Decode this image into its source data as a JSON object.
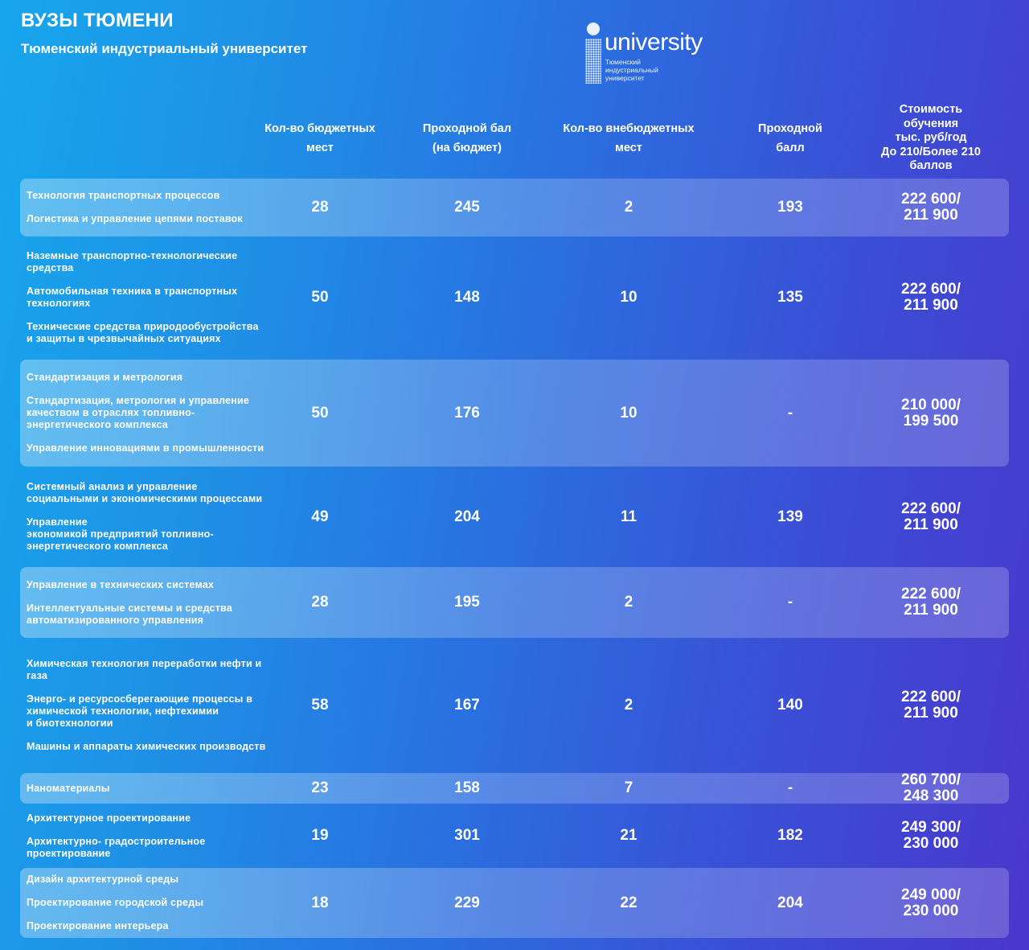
{
  "title": "ВУЗЫ ТЮМЕНИ",
  "subtitle": "Тюменский индустриальный университет",
  "logo": {
    "word": "university",
    "small": [
      "Тюменский",
      "индустриальный",
      "университет"
    ]
  },
  "headers": [
    "Кол-во бюджетных\nмест",
    "Проходной бал\n(на бюджет)",
    "Кол-во внебюджетных\nмест",
    "Проходной\nбалл",
    "Стоимость\nобучения\nтыс. руб/год\nДо 210/Более 210\nбаллов"
  ],
  "rows": [
    {
      "programs": [
        "Технология транспортных процессов",
        "Логистика и управление цепями поставок"
      ],
      "budget": "28",
      "pass_budget": "245",
      "paid": "2",
      "pass_paid": "193",
      "cost": "222 600/\n211 900"
    },
    {
      "programs": [
        "Наземные транспортно-технологические средства",
        "Автомобильная техника в транспортных технологиях",
        "Технические средства природообустройства и защиты в чрезвычайных ситуациях"
      ],
      "budget": "50",
      "pass_budget": "148",
      "paid": "10",
      "pass_paid": "135",
      "cost": "222 600/\n211 900"
    },
    {
      "programs": [
        "Стандартизация и метрология",
        "Стандартизация, метрология и управление качеством в отраслях топливно-энергетического комплекса",
        "Управление инновациями в промышленности"
      ],
      "budget": "50",
      "pass_budget": "176",
      "paid": "10",
      "pass_paid": "-",
      "cost": "210 000/\n199 500"
    },
    {
      "programs": [
        "Системный анализ и управление социальными и экономическими процессами",
        "Управление\nэкономикой предприятий топливно-энергетического комплекса"
      ],
      "budget": "49",
      "pass_budget": "204",
      "paid": "11",
      "pass_paid": "139",
      "cost": "222 600/\n211 900"
    },
    {
      "programs": [
        "Управление в технических системах",
        "Интеллектуальные системы и средства автоматизированного управления"
      ],
      "budget": "28",
      "pass_budget": "195",
      "paid": "2",
      "pass_paid": "-",
      "cost": "222 600/\n211 900"
    },
    {
      "programs": [
        "Химическая технология переработки нефти и газа",
        "Энерго- и ресурсосберегающие процессы в химической технологии, нефтехимии\nи биотехнологии",
        "Машины и аппараты химических производств"
      ],
      "budget": "58",
      "pass_budget": "167",
      "paid": "2",
      "pass_paid": "140",
      "cost": "222 600/\n211 900"
    },
    {
      "programs": [
        "Наноматериалы"
      ],
      "budget": "23",
      "pass_budget": "158",
      "paid": "7",
      "pass_paid": "-",
      "cost": "260 700/\n248 300"
    },
    {
      "programs": [
        "Архитектурное проектирование",
        "Архитектурно- градостроительное проектирование"
      ],
      "budget": "19",
      "pass_budget": "301",
      "paid": "21",
      "pass_paid": "182",
      "cost": "249 300/\n230 000"
    },
    {
      "programs": [
        "Дизайн архитектурной среды",
        "Проектирование городской среды",
        "Проектирование интерьера"
      ],
      "budget": "18",
      "pass_budget": "229",
      "paid": "22",
      "pass_paid": "204",
      "cost": "249 000/\n230 000"
    }
  ]
}
